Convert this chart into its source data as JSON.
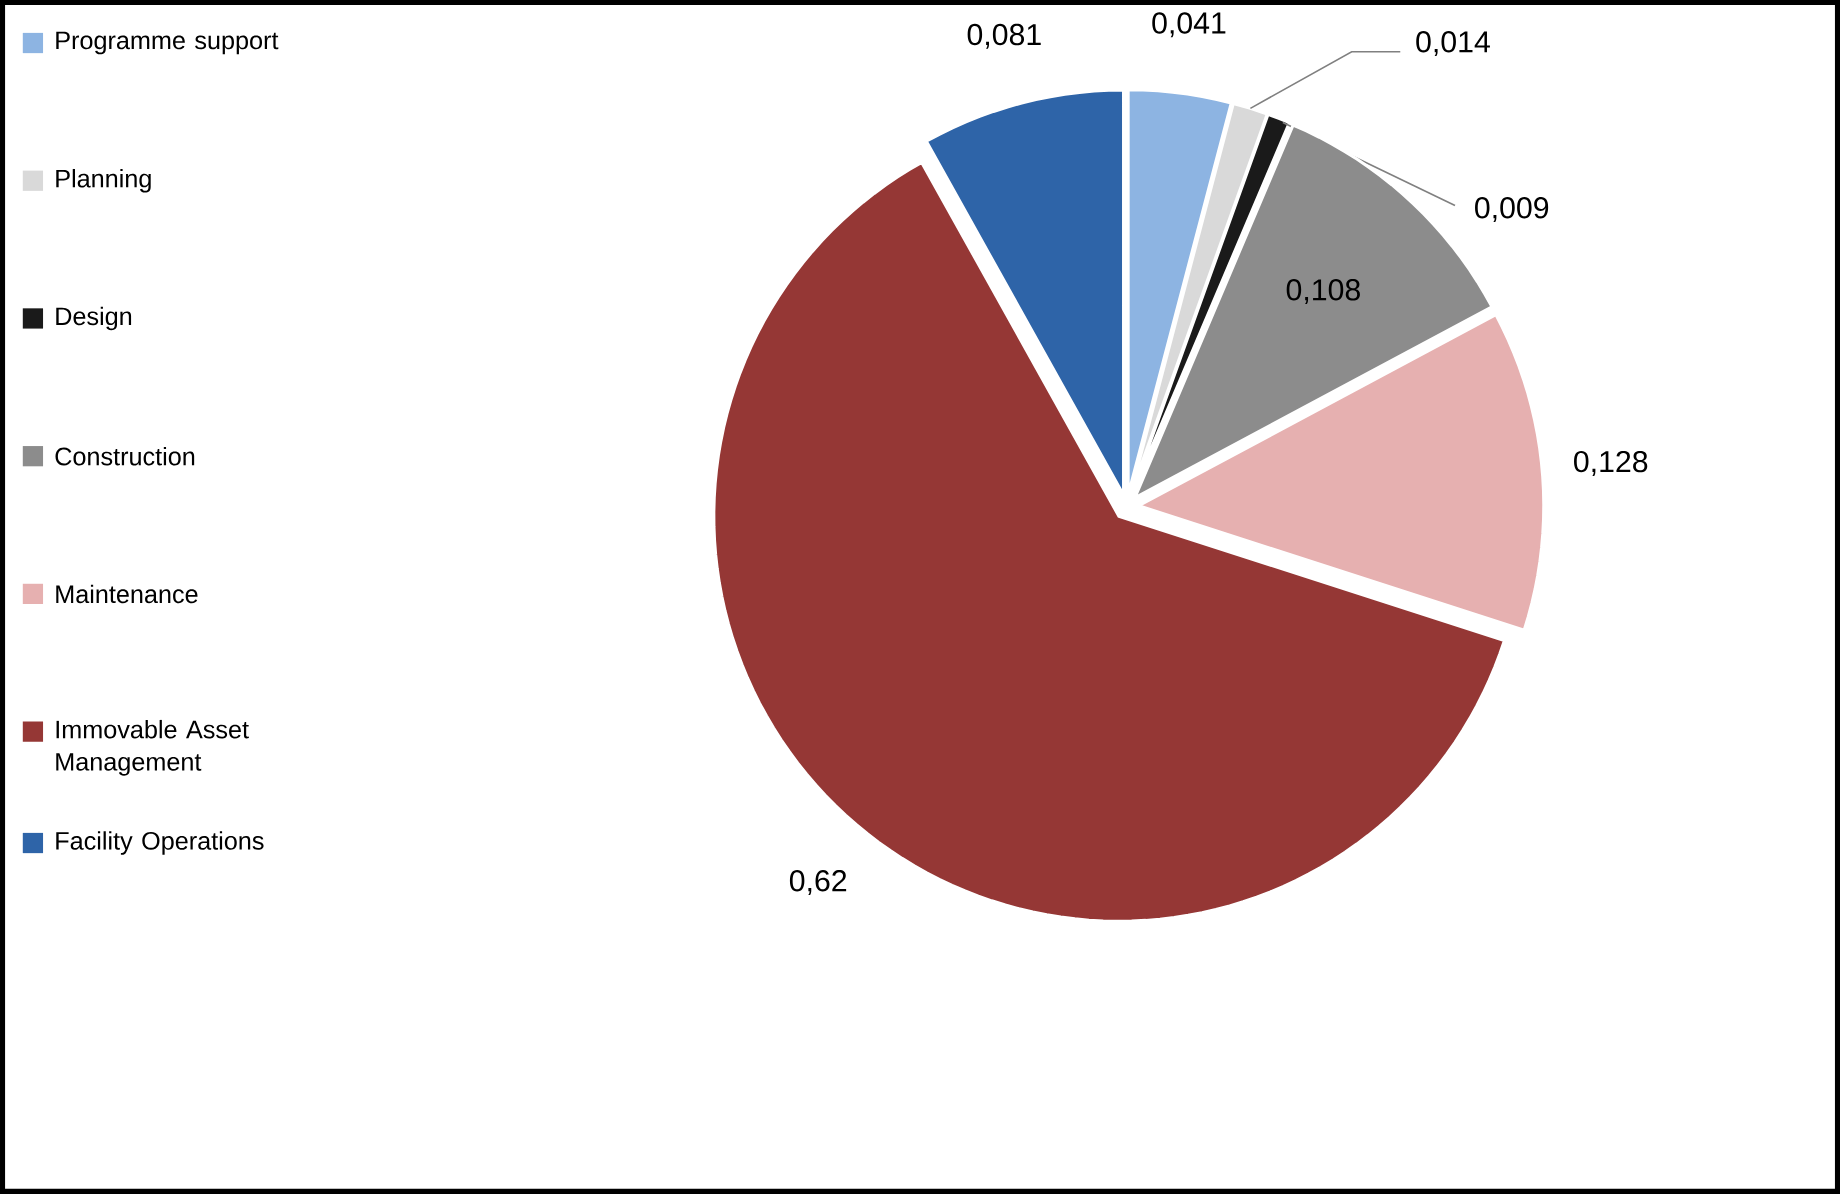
{
  "chart_data": {
    "type": "pie",
    "categories": [
      "Programme support",
      "Planning",
      "Design",
      "Construction",
      "Maintenance",
      "Immovable Asset Management",
      "Facility Operations"
    ],
    "values": [
      0.041,
      0.014,
      0.009,
      0.108,
      0.128,
      0.62,
      0.081
    ],
    "value_labels": [
      "0,041",
      "0,014",
      "0,009",
      "0,108",
      "0,128",
      "0,62",
      "0,081"
    ],
    "colors": [
      "#8db4e2",
      "#d9d9d9",
      "#1a1a1a",
      "#8c8c8c",
      "#e6b0b0",
      "#953735",
      "#2e64a8"
    ],
    "legend": "left"
  }
}
